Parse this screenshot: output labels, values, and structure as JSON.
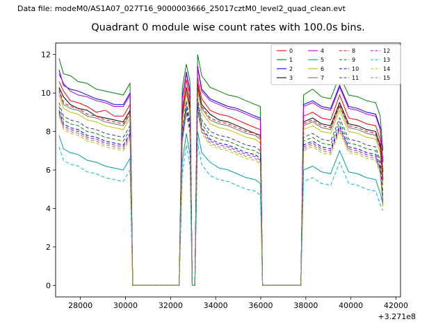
{
  "header": {
    "datafile_label": "Data file: modeM0/AS1A07_027T16_9000003666_25017cztM0_level2_quad_clean.evt"
  },
  "chart_data": {
    "type": "line",
    "title": "Quadrant 0 module wise count rates with 100.0s bins.",
    "xlabel": "",
    "ylabel": "",
    "x_offset": "+3.271e8",
    "xlim": [
      26900,
      42200
    ],
    "ylim": [
      -0.6,
      12.6
    ],
    "x_ticks": [
      28000,
      30000,
      32000,
      34000,
      36000,
      38000,
      40000,
      42000
    ],
    "y_ticks": [
      0,
      2,
      4,
      6,
      8,
      10,
      12
    ],
    "grid": false,
    "legend_position": "upper right",
    "legend_columns": 4,
    "x": [
      27050,
      27250,
      27550,
      27900,
      28300,
      28700,
      29100,
      29500,
      29900,
      30200,
      30320,
      32380,
      32520,
      32700,
      32860,
      32960,
      33080,
      33200,
      33380,
      33750,
      34150,
      34550,
      34950,
      35350,
      35750,
      35980,
      36080,
      37780,
      37900,
      38300,
      38700,
      39100,
      39500,
      39900,
      40300,
      40700,
      41100,
      41300,
      41420
    ],
    "series": [
      {
        "name": "0",
        "color": "#ff0000",
        "dash": false,
        "values": [
          10.6,
          10.1,
          9.6,
          9.5,
          9.3,
          9.0,
          9.1,
          8.8,
          8.8,
          9.4,
          0,
          0,
          9.2,
          10.7,
          9.6,
          0,
          0,
          10.8,
          9.7,
          9.1,
          8.9,
          8.8,
          8.6,
          8.4,
          8.2,
          8.1,
          0,
          0,
          8.8,
          9.0,
          8.7,
          8.6,
          9.9,
          8.7,
          8.6,
          8.4,
          8.3,
          7.6,
          5.9
        ]
      },
      {
        "name": "1",
        "color": "#008000",
        "dash": false,
        "values": [
          11.8,
          11.0,
          10.9,
          10.6,
          10.5,
          10.2,
          10.1,
          10.0,
          9.9,
          10.5,
          0,
          0,
          10.3,
          11.5,
          10.6,
          0,
          0,
          12.0,
          10.9,
          10.3,
          10.1,
          9.9,
          9.8,
          9.6,
          9.4,
          9.3,
          0,
          0,
          9.9,
          10.2,
          9.8,
          9.7,
          10.9,
          9.9,
          9.8,
          9.6,
          9.5,
          8.8,
          7.0
        ]
      },
      {
        "name": "2",
        "color": "#0000ff",
        "dash": false,
        "values": [
          11.2,
          10.4,
          10.2,
          10.1,
          9.9,
          9.7,
          9.6,
          9.4,
          9.4,
          10.0,
          0,
          0,
          9.8,
          11.1,
          10.1,
          0,
          0,
          11.4,
          10.2,
          9.7,
          9.5,
          9.3,
          9.2,
          9.0,
          8.8,
          8.7,
          0,
          0,
          9.4,
          9.6,
          9.3,
          9.2,
          10.4,
          9.3,
          9.2,
          9.0,
          8.9,
          8.2,
          6.5
        ]
      },
      {
        "name": "3",
        "color": "#000000",
        "dash": false,
        "values": [
          10.3,
          9.8,
          9.4,
          9.2,
          9.1,
          8.8,
          8.7,
          8.6,
          8.5,
          9.1,
          0,
          0,
          8.9,
          10.3,
          9.3,
          0,
          0,
          10.5,
          9.4,
          8.9,
          8.6,
          8.5,
          8.3,
          8.1,
          7.9,
          7.8,
          0,
          0,
          8.5,
          8.7,
          8.4,
          8.3,
          9.5,
          8.4,
          8.3,
          8.1,
          8.0,
          7.3,
          5.6
        ]
      },
      {
        "name": "4",
        "color": "#bf00bf",
        "dash": false,
        "values": [
          11.0,
          10.5,
          10.1,
          9.9,
          9.8,
          9.6,
          9.5,
          9.3,
          9.3,
          9.9,
          0,
          0,
          9.7,
          11.0,
          10.0,
          0,
          0,
          11.3,
          10.1,
          9.6,
          9.4,
          9.2,
          9.1,
          8.9,
          8.7,
          8.6,
          0,
          0,
          9.3,
          9.5,
          9.2,
          9.1,
          10.3,
          9.2,
          9.1,
          8.9,
          8.8,
          8.1,
          6.4
        ]
      },
      {
        "name": "5",
        "color": "#009f9f",
        "dash": false,
        "values": [
          7.8,
          7.1,
          6.9,
          6.8,
          6.5,
          6.4,
          6.2,
          6.1,
          6.0,
          6.6,
          0,
          0,
          6.4,
          7.9,
          6.8,
          0,
          0,
          8.0,
          6.9,
          6.4,
          6.1,
          6.0,
          5.8,
          5.6,
          5.5,
          5.3,
          0,
          0,
          6.0,
          6.2,
          5.9,
          5.8,
          7.0,
          5.9,
          5.8,
          5.6,
          5.5,
          4.8,
          4.2
        ]
      },
      {
        "name": "6",
        "color": "#bfbf00",
        "dash": false,
        "values": [
          9.9,
          9.2,
          9.0,
          8.9,
          8.6,
          8.5,
          8.3,
          8.2,
          8.1,
          8.7,
          0,
          0,
          8.5,
          10.0,
          8.9,
          0,
          0,
          10.1,
          9.0,
          8.4,
          8.2,
          8.1,
          7.9,
          7.7,
          7.6,
          7.4,
          0,
          0,
          8.1,
          8.3,
          8.0,
          7.9,
          9.1,
          8.0,
          7.9,
          7.7,
          7.6,
          6.9,
          5.2
        ]
      },
      {
        "name": "7",
        "color": "#6e6e6e",
        "dash": false,
        "values": [
          10.1,
          9.4,
          9.2,
          9.1,
          8.8,
          8.7,
          8.5,
          8.4,
          8.3,
          8.9,
          0,
          0,
          8.7,
          10.2,
          9.1,
          0,
          0,
          10.3,
          9.2,
          8.6,
          8.4,
          8.3,
          8.1,
          7.9,
          7.8,
          7.6,
          0,
          0,
          8.3,
          8.5,
          8.2,
          8.1,
          9.3,
          8.2,
          8.1,
          7.9,
          7.8,
          7.1,
          5.4
        ]
      },
      {
        "name": "8",
        "color": "#ff0000",
        "dash": true,
        "values": [
          10.2,
          9.5,
          9.3,
          9.2,
          8.9,
          8.8,
          8.6,
          8.5,
          8.4,
          9.0,
          0,
          0,
          8.8,
          10.3,
          9.2,
          0,
          0,
          10.4,
          9.3,
          8.7,
          8.5,
          8.4,
          8.2,
          8.0,
          7.9,
          7.7,
          0,
          0,
          8.4,
          8.6,
          8.3,
          8.2,
          9.4,
          8.3,
          8.2,
          8.0,
          7.9,
          7.2,
          5.5
        ]
      },
      {
        "name": "9",
        "color": "#008000",
        "dash": true,
        "values": [
          9.3,
          8.6,
          8.4,
          8.3,
          8.0,
          7.9,
          7.7,
          7.6,
          7.5,
          8.1,
          0,
          0,
          7.9,
          9.4,
          8.3,
          0,
          0,
          9.5,
          8.4,
          7.8,
          7.6,
          7.5,
          7.3,
          7.1,
          7.0,
          6.8,
          0,
          0,
          7.5,
          7.7,
          7.4,
          7.3,
          8.5,
          7.4,
          7.3,
          7.1,
          7.0,
          6.3,
          4.6
        ]
      },
      {
        "name": "10",
        "color": "#0000ff",
        "dash": true,
        "values": [
          9.1,
          8.4,
          8.2,
          8.1,
          7.8,
          7.7,
          7.5,
          7.4,
          7.3,
          7.9,
          0,
          0,
          7.7,
          9.2,
          8.1,
          0,
          0,
          9.3,
          8.2,
          7.6,
          7.4,
          7.3,
          7.1,
          6.9,
          6.8,
          6.6,
          0,
          0,
          7.3,
          7.5,
          7.2,
          7.1,
          8.3,
          7.2,
          7.1,
          6.9,
          6.8,
          6.1,
          4.4
        ]
      },
      {
        "name": "11",
        "color": "#3a3aa0",
        "dash": true,
        "values": [
          9.5,
          8.8,
          8.6,
          8.5,
          8.2,
          8.1,
          7.9,
          7.8,
          7.7,
          8.3,
          0,
          0,
          8.1,
          9.6,
          8.5,
          0,
          0,
          9.7,
          8.6,
          8.0,
          7.8,
          7.7,
          7.5,
          7.3,
          7.2,
          7.0,
          0,
          0,
          7.7,
          7.9,
          7.6,
          7.5,
          8.7,
          7.6,
          7.5,
          7.3,
          7.2,
          6.5,
          4.8
        ]
      },
      {
        "name": "12",
        "color": "#bf00bf",
        "dash": true,
        "values": [
          9.0,
          8.3,
          8.1,
          8.0,
          7.7,
          7.6,
          7.4,
          7.3,
          7.2,
          7.8,
          0,
          0,
          7.6,
          9.1,
          8.0,
          0,
          0,
          9.2,
          8.1,
          7.5,
          7.3,
          7.2,
          7.0,
          6.8,
          6.7,
          6.5,
          0,
          0,
          7.2,
          7.4,
          7.1,
          7.0,
          8.2,
          7.1,
          7.0,
          6.8,
          6.7,
          6.0,
          4.3
        ]
      },
      {
        "name": "13",
        "color": "#00bfbf",
        "dash": true,
        "values": [
          7.2,
          6.5,
          6.3,
          6.2,
          5.9,
          5.8,
          5.6,
          5.5,
          5.4,
          6.0,
          0,
          0,
          5.8,
          7.3,
          6.2,
          0,
          0,
          7.4,
          6.3,
          5.7,
          5.5,
          5.4,
          5.2,
          5.0,
          4.9,
          4.7,
          0,
          0,
          5.4,
          5.6,
          5.3,
          5.2,
          6.4,
          5.3,
          5.2,
          5.0,
          4.9,
          4.2,
          3.9
        ]
      },
      {
        "name": "14",
        "color": "#bfbf00",
        "dash": true,
        "values": [
          8.8,
          8.1,
          7.9,
          7.8,
          7.5,
          7.4,
          7.2,
          7.1,
          7.0,
          7.6,
          0,
          0,
          7.4,
          8.9,
          7.8,
          0,
          0,
          9.0,
          7.9,
          7.3,
          7.1,
          7.0,
          6.8,
          6.6,
          6.5,
          6.3,
          0,
          0,
          7.0,
          7.2,
          6.9,
          6.8,
          8.0,
          6.9,
          6.8,
          6.6,
          6.5,
          5.8,
          4.1
        ]
      },
      {
        "name": "15",
        "color": "#8a8a6e",
        "dash": true,
        "values": [
          8.9,
          8.2,
          8.0,
          7.9,
          7.6,
          7.5,
          7.3,
          7.2,
          7.1,
          7.7,
          0,
          0,
          7.5,
          9.0,
          7.9,
          0,
          0,
          9.1,
          8.0,
          7.4,
          7.2,
          7.1,
          6.9,
          6.7,
          6.6,
          6.4,
          0,
          0,
          7.1,
          7.3,
          7.0,
          6.9,
          8.1,
          7.0,
          6.9,
          6.7,
          6.6,
          5.9,
          4.2
        ]
      }
    ]
  }
}
